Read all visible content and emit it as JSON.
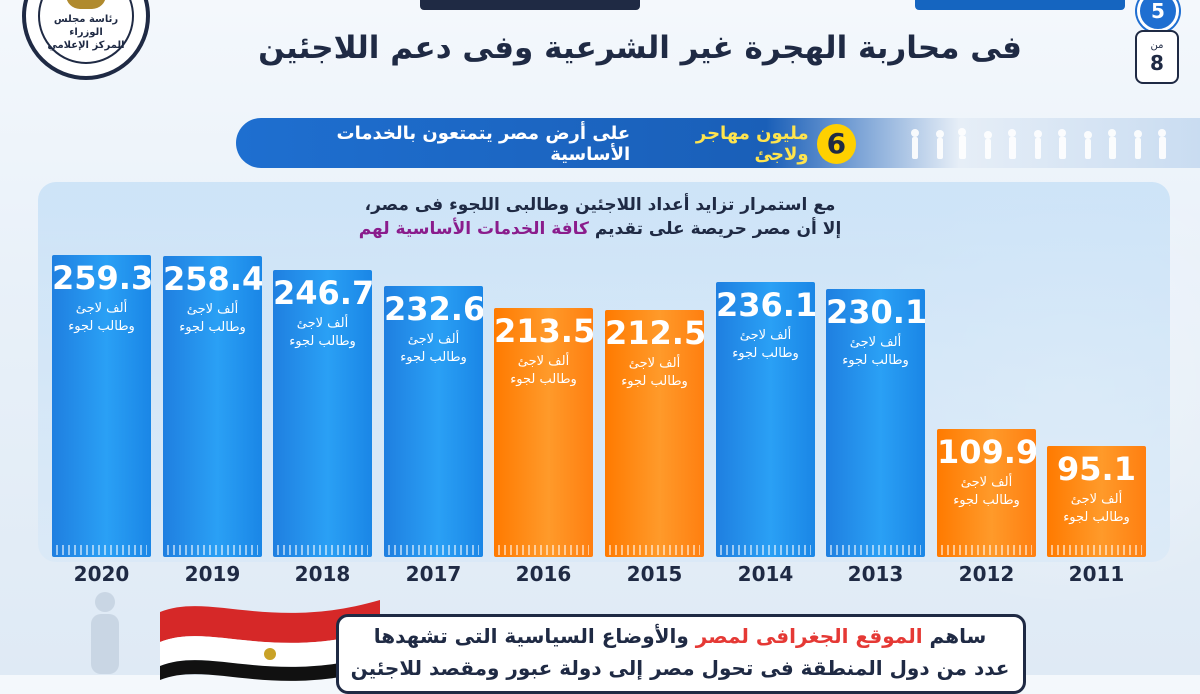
{
  "header": {
    "page_number": "5",
    "page_of_label": "من",
    "page_total": "8",
    "title_line2": "فى محاربة الهجرة غير الشرعية وفى دعم اللاجئين",
    "logo_line1": "رئاسة مجلس الوزراء",
    "logo_line2": "المركز الإعلامي"
  },
  "banner": {
    "number": "6",
    "highlight": "مليون مهاجر ولاجئ",
    "rest": "على أرض مصر يتمتعون بالخدمات الأساسية"
  },
  "intro": {
    "line1": "مع استمرار تزايد أعداد اللاجئين وطالبى اللجوء فى مصر،",
    "line2_plain": "إلا أن مصر حريصة على تقديم",
    "line2_purple": "كافة الخدمات الأساسية لهم"
  },
  "chart_data": {
    "type": "bar",
    "categories": [
      "2020",
      "2019",
      "2018",
      "2017",
      "2016",
      "2015",
      "2014",
      "2013",
      "2012",
      "2011"
    ],
    "values": [
      259.3,
      258.4,
      246.7,
      232.6,
      213.5,
      212.5,
      236.1,
      230.1,
      109.9,
      95.1
    ],
    "value_labels": [
      "259.3",
      "258.4",
      "246.7",
      "232.6",
      "213.5",
      "212.5",
      "236.1",
      "230.1",
      "109.9",
      "95.1"
    ],
    "unit_line1": "ألف لاجئ",
    "unit_line2": "وطالب لجوء",
    "colors": [
      "#1f7fe0",
      "#1f7fe0",
      "#1f7fe0",
      "#1f7fe0",
      "#ff7a00",
      "#ff7a00",
      "#1f7fe0",
      "#1f7fe0",
      "#ff7a00",
      "#ff7a00"
    ],
    "ylim": [
      0,
      280
    ],
    "grid": false
  },
  "bottom": {
    "line1_plain_a": "ساهم",
    "line1_red": "الموقع الجغرافى لمصر",
    "line1_plain_b": "والأوضاع السياسية التى تشهدها",
    "line2": "عدد من دول المنطقة فى تحول مصر إلى دولة عبور ومقصد للاجئين"
  }
}
